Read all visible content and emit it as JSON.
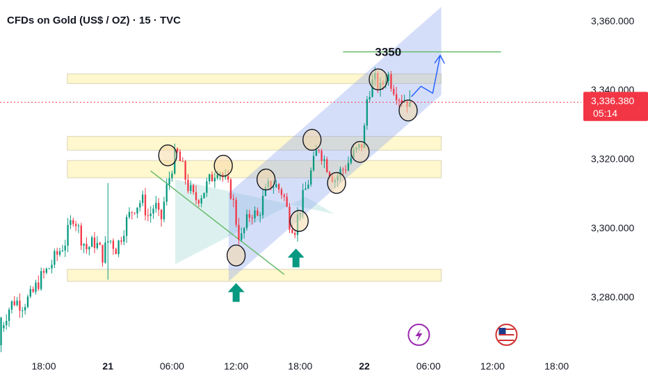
{
  "chart_data": {
    "type": "candlestick",
    "title": "CFDs on Gold (US$ / OZ) · 15 · TVC",
    "x_ticks": [
      {
        "label": "18:00",
        "t": 18,
        "bold": false
      },
      {
        "label": "21",
        "t": 24,
        "bold": true
      },
      {
        "label": "06:00",
        "t": 30,
        "bold": false
      },
      {
        "label": "12:00",
        "t": 36,
        "bold": false
      },
      {
        "label": "18:00",
        "t": 42,
        "bold": false
      },
      {
        "label": "22",
        "t": 48,
        "bold": true
      },
      {
        "label": "06:00",
        "t": 54,
        "bold": false
      },
      {
        "label": "12:00",
        "t": 60,
        "bold": false
      },
      {
        "label": "18:00",
        "t": 66,
        "bold": false
      }
    ],
    "y_ticks": [
      {
        "label": "3,360.000",
        "value": 3360
      },
      {
        "label": "3,340.000",
        "value": 3340
      },
      {
        "label": "3,320.000",
        "value": 3320
      },
      {
        "label": "3,300.000",
        "value": 3300
      },
      {
        "label": "3,280.000",
        "value": 3280
      }
    ],
    "ylim": [
      3263,
      3366
    ],
    "xlim": [
      13.9,
      68.3
    ],
    "last_price": {
      "value": 3336.38,
      "label": "3,336.380",
      "countdown": "05:14",
      "color": "#f23645"
    },
    "up_color": "#089981",
    "down_color": "#f23645",
    "price_path": [
      [
        14.0,
        3271
      ],
      [
        14.6,
        3276
      ],
      [
        15.2,
        3279
      ],
      [
        16.0,
        3278
      ],
      [
        16.8,
        3280
      ],
      [
        17.6,
        3285
      ],
      [
        18.4,
        3288
      ],
      [
        19.2,
        3292
      ],
      [
        20.0,
        3296
      ],
      [
        20.8,
        3304
      ],
      [
        21.4,
        3298
      ],
      [
        22.0,
        3294
      ],
      [
        22.8,
        3296
      ],
      [
        23.5,
        3292
      ],
      [
        24.1,
        3297
      ],
      [
        24.8,
        3294
      ],
      [
        25.6,
        3301
      ],
      [
        26.4,
        3306
      ],
      [
        27.2,
        3308
      ],
      [
        27.8,
        3303
      ],
      [
        28.4,
        3307
      ],
      [
        28.9,
        3301
      ],
      [
        29.4,
        3310
      ],
      [
        30.0,
        3318
      ],
      [
        30.4,
        3322
      ],
      [
        30.9,
        3318
      ],
      [
        31.5,
        3312
      ],
      [
        32.1,
        3308
      ],
      [
        32.8,
        3310
      ],
      [
        33.6,
        3314
      ],
      [
        34.3,
        3318
      ],
      [
        35.0,
        3313
      ],
      [
        35.6,
        3310
      ],
      [
        36.0,
        3302
      ],
      [
        36.4,
        3296
      ],
      [
        36.8,
        3300
      ],
      [
        37.4,
        3305
      ],
      [
        38.0,
        3303
      ],
      [
        38.6,
        3309
      ],
      [
        39.2,
        3313
      ],
      [
        39.8,
        3312
      ],
      [
        40.4,
        3310
      ],
      [
        41.0,
        3302
      ],
      [
        41.5,
        3300
      ],
      [
        42.0,
        3306
      ],
      [
        42.6,
        3312
      ],
      [
        43.2,
        3318
      ],
      [
        43.7,
        3324
      ],
      [
        44.2,
        3320
      ],
      [
        44.7,
        3317
      ],
      [
        45.2,
        3314
      ],
      [
        45.7,
        3316
      ],
      [
        46.3,
        3318
      ],
      [
        46.9,
        3321
      ],
      [
        47.5,
        3323
      ],
      [
        47.9,
        3325
      ],
      [
        48.3,
        3339
      ],
      [
        48.9,
        3343
      ],
      [
        49.5,
        3340
      ],
      [
        50.1,
        3345
      ],
      [
        50.7,
        3341
      ],
      [
        51.3,
        3338
      ],
      [
        51.9,
        3337
      ],
      [
        52.4,
        3336.38
      ]
    ],
    "horizontal_zones": [
      {
        "t_start": 20.2,
        "t_end": 55.2,
        "low": 3341.8,
        "high": 3344.6
      },
      {
        "t_start": 20.2,
        "t_end": 55.2,
        "low": 3322.5,
        "high": 3326.5
      },
      {
        "t_start": 20.2,
        "t_end": 55.2,
        "low": 3314.5,
        "high": 3319.5
      },
      {
        "t_start": 20.2,
        "t_end": 55.2,
        "low": 3284.5,
        "high": 3288.0
      }
    ],
    "channel": {
      "lower": [
        [
          35.3,
          3284.5
        ],
        [
          55.2,
          3338.5
        ]
      ],
      "upper": [
        [
          35.3,
          3310
        ],
        [
          55.2,
          3364
        ]
      ]
    },
    "triangle": [
      [
        30.3,
        3314
      ],
      [
        30.3,
        3289.5
      ],
      [
        42.5,
        3309
      ],
      [
        45.2,
        3304
      ]
    ],
    "trendline": [
      [
        28.0,
        3316.5
      ],
      [
        40.5,
        3286.5
      ]
    ],
    "target_line": [
      [
        46.0,
        3351
      ],
      [
        60.8,
        3351
      ]
    ],
    "target_label": "3350",
    "projection": [
      [
        52.4,
        3338
      ],
      [
        53.3,
        3341
      ],
      [
        54.4,
        3339
      ],
      [
        55.1,
        3350
      ],
      [
        54.6,
        3347.8
      ],
      [
        55.1,
        3350
      ],
      [
        55.5,
        3347.6
      ]
    ],
    "circles": [
      {
        "t": 29.6,
        "value": 3321
      },
      {
        "t": 34.8,
        "value": 3318
      },
      {
        "t": 36.0,
        "value": 3292
      },
      {
        "t": 38.8,
        "value": 3314
      },
      {
        "t": 41.9,
        "value": 3302
      },
      {
        "t": 43.1,
        "value": 3325.5
      },
      {
        "t": 45.4,
        "value": 3313
      },
      {
        "t": 47.6,
        "value": 3322
      },
      {
        "t": 49.3,
        "value": 3343
      },
      {
        "t": 52.1,
        "value": 3334
      }
    ],
    "arrows": [
      {
        "t": 36.0,
        "value": 3284
      },
      {
        "t": 41.6,
        "value": 3294
      }
    ],
    "event_icons": [
      {
        "kind": "lightning",
        "t": 53.1,
        "color": "#9c27b0"
      },
      {
        "kind": "us-flag",
        "t": 61.3
      }
    ]
  }
}
